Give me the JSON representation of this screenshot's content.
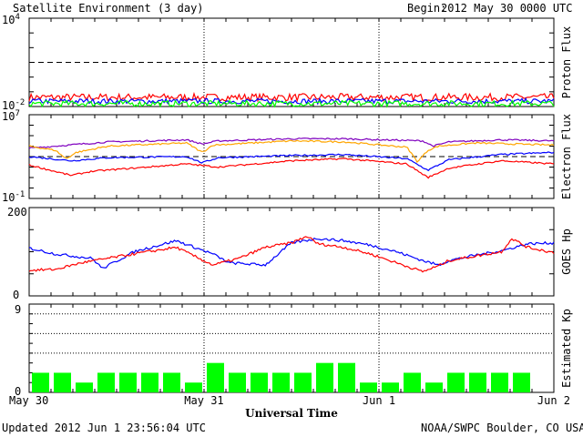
{
  "header": {
    "title": "Satellite Environment (3 day)",
    "begin_label": "Begin:",
    "begin_value": "2012 May 30 0000 UTC"
  },
  "footer": {
    "updated": "Updated 2012 Jun  1 23:56:04 UTC",
    "credit": "NOAA/SWPC Boulder, CO USA"
  },
  "chart_data": [
    {
      "type": "line",
      "panel": "proton",
      "ylabel": "Proton Flux",
      "yscale": "log",
      "ylim": [
        0.01,
        10000
      ],
      "ytick_labels": [
        {
          "base": "10",
          "exp": "4"
        },
        {
          "base": "10",
          "exp": "-2"
        }
      ],
      "threshold": 10,
      "series": [
        {
          "color": "#ff0000",
          "level": 0.03,
          "noise": 0.25
        },
        {
          "color": "#0000ff",
          "level": 0.018,
          "noise": 0.18
        },
        {
          "color": "#00ff00",
          "level": 0.012,
          "noise": 0.2
        }
      ]
    },
    {
      "type": "line",
      "panel": "electron",
      "ylabel": "Electron Flux",
      "yscale": "log",
      "ylim": [
        0.1,
        10000000
      ],
      "ytick_labels": [
        {
          "base": "10",
          "exp": "7"
        },
        {
          "base": "10",
          "exp": "-1"
        }
      ],
      "threshold": 1000,
      "series": [
        {
          "color": "#7f00bf",
          "x": [
            0,
            0.15,
            0.3,
            0.33,
            0.36,
            0.5,
            0.6,
            0.75,
            0.77,
            0.8,
            0.9,
            1.0
          ],
          "y": [
            3.8,
            4.4,
            4.6,
            4.2,
            4.5,
            4.7,
            4.7,
            4.5,
            4.0,
            4.4,
            4.6,
            4.5
          ]
        },
        {
          "color": "#ffa500",
          "x": [
            0,
            0.05,
            0.07,
            0.09,
            0.15,
            0.3,
            0.33,
            0.35,
            0.5,
            0.6,
            0.72,
            0.74,
            0.76,
            0.78,
            0.85,
            1.0
          ],
          "y": [
            4.0,
            3.6,
            2.8,
            3.4,
            4.0,
            4.3,
            3.4,
            4.1,
            4.5,
            4.4,
            3.9,
            2.5,
            3.6,
            4.0,
            4.3,
            4.1
          ]
        },
        {
          "color": "#0000ff",
          "x": [
            0,
            0.08,
            0.15,
            0.3,
            0.33,
            0.36,
            0.5,
            0.6,
            0.72,
            0.76,
            0.8,
            0.9,
            1.0
          ],
          "y": [
            3.0,
            2.6,
            2.9,
            3.0,
            2.4,
            2.9,
            3.1,
            3.2,
            2.8,
            1.7,
            2.7,
            3.2,
            3.4
          ]
        },
        {
          "color": "#ff0000",
          "x": [
            0,
            0.08,
            0.12,
            0.2,
            0.3,
            0.36,
            0.5,
            0.6,
            0.72,
            0.76,
            0.8,
            0.9,
            1.0
          ],
          "y": [
            2.2,
            1.2,
            1.6,
            1.9,
            2.3,
            2.0,
            2.6,
            2.8,
            2.3,
            1.0,
            1.9,
            2.6,
            2.3
          ]
        }
      ]
    },
    {
      "type": "line",
      "panel": "goes-hp",
      "ylabel": "GOES Hp",
      "yscale": "linear",
      "ylim": [
        0,
        200
      ],
      "yticks": [
        0,
        200
      ],
      "series": [
        {
          "color": "#0000ff",
          "x": [
            0,
            0.05,
            0.12,
            0.14,
            0.2,
            0.28,
            0.35,
            0.38,
            0.45,
            0.5,
            0.55,
            0.6,
            0.65,
            0.7,
            0.75,
            0.78,
            0.8,
            0.85,
            0.9,
            0.95,
            1.0
          ],
          "y": [
            108,
            95,
            85,
            62,
            100,
            125,
            95,
            75,
            70,
            120,
            130,
            125,
            115,
            100,
            80,
            70,
            80,
            92,
            102,
            118,
            120
          ]
        },
        {
          "color": "#ff0000",
          "x": [
            0,
            0.05,
            0.1,
            0.15,
            0.2,
            0.28,
            0.35,
            0.4,
            0.45,
            0.5,
            0.53,
            0.55,
            0.6,
            0.65,
            0.7,
            0.75,
            0.78,
            0.8,
            0.85,
            0.9,
            0.92,
            0.95,
            1.0
          ],
          "y": [
            58,
            60,
            75,
            85,
            95,
            110,
            70,
            85,
            110,
            120,
            135,
            118,
            110,
            95,
            75,
            55,
            68,
            80,
            90,
            100,
            130,
            110,
            98
          ]
        }
      ]
    },
    {
      "type": "bar",
      "panel": "kp",
      "ylabel": "Estimated Kp",
      "ylim": [
        0,
        9
      ],
      "yticks": [
        0,
        9
      ],
      "color": "#00ff00",
      "values": [
        2,
        2,
        1,
        2,
        2,
        2,
        2,
        1,
        3,
        2,
        2,
        2,
        2,
        3,
        3,
        1,
        1,
        2,
        1,
        2,
        2,
        2,
        2
      ]
    }
  ],
  "x_axis": {
    "label": "Universal Time",
    "ticks": [
      {
        "label": "May 30",
        "pos": 0
      },
      {
        "label": "May 31",
        "pos": 0.3333
      },
      {
        "label": "Jun 1",
        "pos": 0.6667
      },
      {
        "label": "Jun 2",
        "pos": 1
      }
    ]
  }
}
